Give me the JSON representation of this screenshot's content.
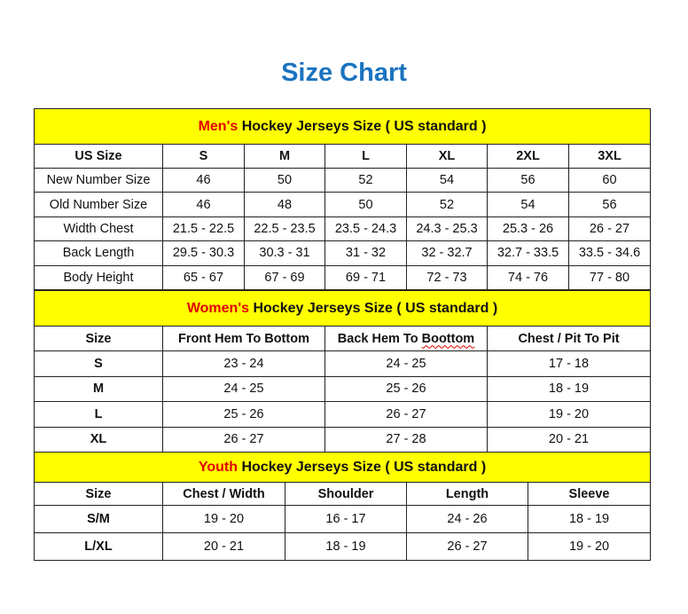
{
  "title": "Size Chart",
  "colors": {
    "title": "#1a73c0",
    "header_bg": "#ffff00",
    "lead_word": "#e00000"
  },
  "mens": {
    "heading_lead": "Men's",
    "heading_rest": " Hockey Jerseys Size ( US standard )",
    "columns": [
      "US Size",
      "S",
      "M",
      "L",
      "XL",
      "2XL",
      "3XL"
    ],
    "rows": [
      [
        "New Number Size",
        "46",
        "50",
        "52",
        "54",
        "56",
        "60"
      ],
      [
        "Old Number Size",
        "46",
        "48",
        "50",
        "52",
        "54",
        "56"
      ],
      [
        "Width Chest",
        "21.5 - 22.5",
        "22.5 - 23.5",
        "23.5 - 24.3",
        "24.3 - 25.3",
        "25.3 - 26",
        "26 - 27"
      ],
      [
        "Back Length",
        "29.5 - 30.3",
        "30.3 - 31",
        "31 - 32",
        "32 - 32.7",
        "32.7 - 33.5",
        "33.5 - 34.6"
      ],
      [
        "Body Height",
        "65 - 67",
        "67 - 69",
        "69 - 71",
        "72 - 73",
        "74 - 76",
        "77 - 80"
      ]
    ]
  },
  "womens": {
    "heading_lead": "Women's",
    "heading_rest": " Hockey Jerseys Size ( US standard )",
    "columns": [
      "Size",
      "Front Hem To Bottom",
      "Back Hem To Boottom",
      "Chest / Pit To Pit"
    ],
    "rows": [
      [
        "S",
        "23 - 24",
        "24 - 25",
        "17 - 18"
      ],
      [
        "M",
        "24 - 25",
        "25 - 26",
        "18 - 19"
      ],
      [
        "L",
        "25 - 26",
        "26 - 27",
        "19 - 20"
      ],
      [
        "XL",
        "26 - 27",
        "27 - 28",
        "20 - 21"
      ]
    ]
  },
  "youth": {
    "heading_lead": "Youth",
    "heading_rest": " Hockey Jerseys Size ( US standard )",
    "columns": [
      "Size",
      "Chest / Width",
      "Shoulder",
      "Length",
      "Sleeve"
    ],
    "rows": [
      [
        "S/M",
        "19 - 20",
        "16 - 17",
        "24 - 26",
        "18 - 19"
      ],
      [
        "L/XL",
        "20 - 21",
        "18 - 19",
        "26 - 27",
        "19 - 20"
      ]
    ]
  }
}
